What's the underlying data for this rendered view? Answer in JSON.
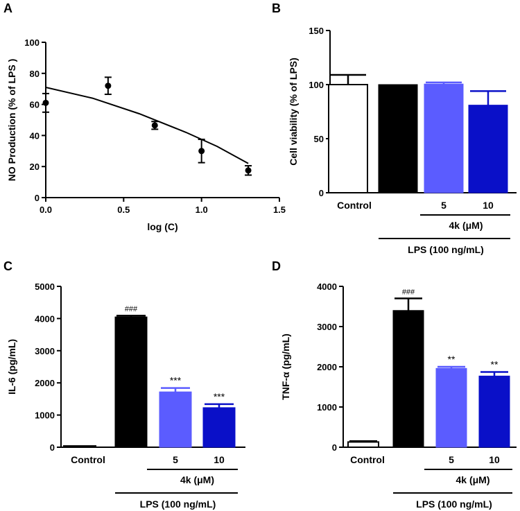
{
  "colors": {
    "axis": "#000000",
    "control": "#ffffff",
    "lps": "#000000",
    "dose5": "#5b5cff",
    "dose10": "#0a10c8"
  },
  "chart_data": [
    {
      "panel": "A",
      "type": "scatter",
      "title": "",
      "xlabel": "log (C)",
      "ylabel": "NO Production (% of LPS )",
      "xlim": [
        0,
        1.5
      ],
      "ylim": [
        0,
        100
      ],
      "xticks": [
        "0.0",
        "0.5",
        "1.0",
        "1.5"
      ],
      "yticks": [
        "0",
        "20",
        "40",
        "60",
        "80",
        "100"
      ],
      "points": [
        {
          "x": 0.0,
          "y": 61,
          "err": 6
        },
        {
          "x": 0.4,
          "y": 72,
          "err": 5.5
        },
        {
          "x": 0.7,
          "y": 46.5,
          "err": 2.5
        },
        {
          "x": 1.0,
          "y": 30,
          "err": 7.5
        },
        {
          "x": 1.3,
          "y": 17.5,
          "err": 3
        }
      ],
      "fit_line": {
        "x": [
          0.0,
          0.3,
          0.6,
          0.9,
          1.1,
          1.3
        ],
        "y": [
          71,
          64,
          54,
          42,
          33,
          22
        ]
      }
    },
    {
      "panel": "B",
      "type": "bar",
      "ylabel": "Cell viability (% of LPS)",
      "ylim": [
        0,
        150
      ],
      "yticks": [
        "0",
        "50",
        "100",
        "150"
      ],
      "categories": [
        "Control",
        "",
        "5",
        "10"
      ],
      "values": [
        100,
        100,
        100.5,
        81
      ],
      "errors": [
        9,
        0,
        1.5,
        13
      ],
      "annotations": [
        "",
        "",
        "",
        ""
      ],
      "group_label_4k": "4k (μM)",
      "group_label_lps": "LPS (100 ng/mL)"
    },
    {
      "panel": "C",
      "type": "bar",
      "ylabel": "IL-6 (pg/mL)",
      "ylim": [
        0,
        5000
      ],
      "yticks": [
        "0",
        "1000",
        "2000",
        "3000",
        "4000",
        "5000"
      ],
      "categories": [
        "Control",
        "",
        "5",
        "10"
      ],
      "values": [
        40,
        4050,
        1720,
        1230
      ],
      "errors": [
        0,
        40,
        120,
        110
      ],
      "annotations": [
        "",
        "###",
        "***",
        "***"
      ],
      "group_label_4k": "4k (μM)",
      "group_label_lps": "LPS (100 ng/mL)"
    },
    {
      "panel": "D",
      "type": "bar",
      "ylabel": "TNF-α (pg/mL)",
      "ylim": [
        0,
        4000
      ],
      "yticks": [
        "0",
        "1000",
        "2000",
        "3000",
        "4000"
      ],
      "categories": [
        "Control",
        "",
        "5",
        "10"
      ],
      "values": [
        130,
        3400,
        1960,
        1770
      ],
      "errors": [
        20,
        300,
        40,
        100
      ],
      "annotations": [
        "",
        "###",
        "**",
        "**"
      ],
      "group_label_4k": "4k (μM)",
      "group_label_lps": "LPS (100 ng/mL)"
    }
  ]
}
